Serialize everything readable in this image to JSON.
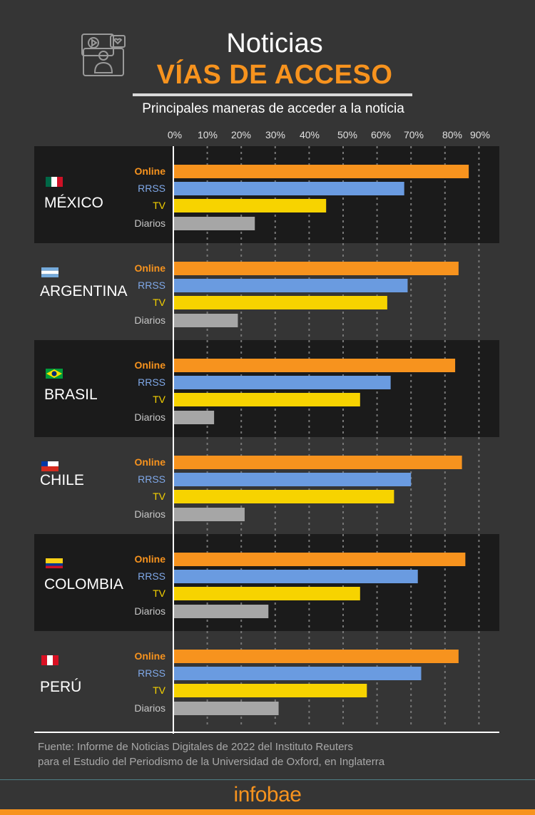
{
  "header": {
    "title": "Noticias",
    "subtitle": "VÍAS DE ACCESO",
    "caption": "Principales maneras de acceder a la noticia",
    "icon": "video-news-presenter-icon"
  },
  "footer": {
    "source_line1": "Fuente: Informe de Noticias Digitales de 2022 del Instituto Reuters",
    "source_line2": "para el Estudio del Periodismo de la Universidad de Oxford, en Inglaterra",
    "logo": "infobae"
  },
  "chart_data": {
    "type": "bar",
    "orientation": "horizontal",
    "xlim": [
      0,
      90
    ],
    "x_ticks": [
      "0%",
      "10%",
      "20%",
      "30%",
      "40%",
      "50%",
      "60%",
      "70%",
      "80%",
      "90%"
    ],
    "grid": "vertical dotted",
    "series_labels": [
      "Online",
      "RRSS",
      "TV",
      "Diarios"
    ],
    "series_colors": {
      "Online": "#f7931e",
      "RRSS": "#6a9be0",
      "TV": "#f7d300",
      "Diarios": "#a6a6a6"
    },
    "label_colors": {
      "Online": "#f7931e",
      "RRSS": "#7fa8e8",
      "TV": "#f7d300",
      "Diarios": "#c8c8c8"
    },
    "groups": [
      {
        "country": "MÉXICO",
        "flag": "mexico",
        "values": [
          87,
          68,
          45,
          24
        ]
      },
      {
        "country": "ARGENTINA",
        "flag": "argentina",
        "values": [
          84,
          69,
          63,
          19
        ]
      },
      {
        "country": "BRASIL",
        "flag": "brazil",
        "values": [
          83,
          64,
          55,
          12
        ]
      },
      {
        "country": "CHILE",
        "flag": "chile",
        "values": [
          85,
          70,
          65,
          21
        ]
      },
      {
        "country": "COLOMBIA",
        "flag": "colombia",
        "values": [
          86,
          72,
          55,
          28
        ]
      },
      {
        "country": "PERÚ",
        "flag": "peru",
        "values": [
          84,
          73,
          57,
          31
        ]
      }
    ]
  }
}
